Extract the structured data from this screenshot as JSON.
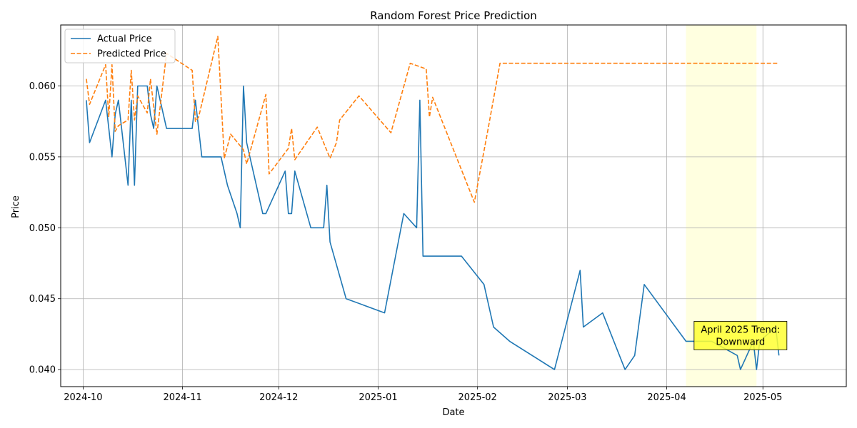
{
  "chart_data": {
    "type": "line",
    "title": "Random Forest Price Prediction",
    "xlabel": "Date",
    "ylabel": "Price",
    "x_ticks": [
      "2024-10-01",
      "2024-11-01",
      "2024-12-01",
      "2025-01-01",
      "2025-02-01",
      "2025-03-01",
      "2025-04-01",
      "2025-05-01"
    ],
    "y_ticks": [
      0.04,
      0.045,
      0.05,
      0.055,
      0.06
    ],
    "y_tick_labels": [
      "0.040",
      "0.045",
      "0.050",
      "0.055",
      "0.060"
    ],
    "xlim": [
      "2024-09-24",
      "2025-05-27"
    ],
    "ylim": [
      0.0388,
      0.0643
    ],
    "grid": true,
    "legend_position": "top-left",
    "highlight_range": [
      "2025-04-07",
      "2025-04-29"
    ],
    "highlight_color": "#ffffe0",
    "annotation": {
      "lines": [
        "April 2025 Trend:",
        "Downward"
      ],
      "anchor_date": "2025-04-24",
      "anchor_value": 0.0424,
      "background": "#ffff33"
    },
    "series": [
      {
        "name": "Actual Price",
        "color": "#1f77b4",
        "style": "solid",
        "x": [
          "2024-10-02",
          "2024-10-03",
          "2024-10-08",
          "2024-10-10",
          "2024-10-11",
          "2024-10-12",
          "2024-10-15",
          "2024-10-16",
          "2024-10-17",
          "2024-10-18",
          "2024-10-21",
          "2024-10-22",
          "2024-10-23",
          "2024-10-24",
          "2024-10-27",
          "2024-11-04",
          "2024-11-05",
          "2024-11-07",
          "2024-11-13",
          "2024-11-15",
          "2024-11-18",
          "2024-11-19",
          "2024-11-20",
          "2024-11-21",
          "2024-11-26",
          "2024-11-27",
          "2024-12-03",
          "2024-12-04",
          "2024-12-05",
          "2024-12-06",
          "2024-12-11",
          "2024-12-15",
          "2024-12-16",
          "2024-12-17",
          "2024-12-22",
          "2025-01-03",
          "2025-01-09",
          "2025-01-13",
          "2025-01-14",
          "2025-01-15",
          "2025-01-27",
          "2025-02-03",
          "2025-02-06",
          "2025-02-11",
          "2025-02-25",
          "2025-03-05",
          "2025-03-06",
          "2025-03-12",
          "2025-03-19",
          "2025-03-22",
          "2025-03-25",
          "2025-04-07",
          "2025-04-15",
          "2025-04-23",
          "2025-04-24",
          "2025-04-28",
          "2025-04-29",
          "2025-04-30",
          "2025-05-05",
          "2025-05-06"
        ],
        "y": [
          0.059,
          0.056,
          0.059,
          0.055,
          0.058,
          0.059,
          0.053,
          0.059,
          0.053,
          0.06,
          0.06,
          0.058,
          0.057,
          0.06,
          0.057,
          0.057,
          0.059,
          0.055,
          0.055,
          0.053,
          0.051,
          0.05,
          0.06,
          0.056,
          0.051,
          0.051,
          0.054,
          0.051,
          0.051,
          0.054,
          0.05,
          0.05,
          0.053,
          0.049,
          0.045,
          0.044,
          0.051,
          0.05,
          0.059,
          0.048,
          0.048,
          0.046,
          0.043,
          0.042,
          0.04,
          0.047,
          0.043,
          0.044,
          0.04,
          0.041,
          0.046,
          0.042,
          0.042,
          0.041,
          0.04,
          0.042,
          0.04,
          0.042,
          0.043,
          0.041
        ]
      },
      {
        "name": "Predicted Price",
        "color": "#ff7f0e",
        "style": "dashed",
        "x": [
          "2024-10-02",
          "2024-10-03",
          "2024-10-08",
          "2024-10-09",
          "2024-10-10",
          "2024-10-11",
          "2024-10-12",
          "2024-10-15",
          "2024-10-16",
          "2024-10-17",
          "2024-10-18",
          "2024-10-21",
          "2024-10-22",
          "2024-10-24",
          "2024-10-27",
          "2024-11-04",
          "2024-11-05",
          "2024-11-06",
          "2024-11-12",
          "2024-11-14",
          "2024-11-16",
          "2024-11-20",
          "2024-11-21",
          "2024-11-27",
          "2024-11-28",
          "2024-12-04",
          "2024-12-05",
          "2024-12-06",
          "2024-12-13",
          "2024-12-17",
          "2024-12-19",
          "2024-12-20",
          "2024-12-26",
          "2025-01-05",
          "2025-01-11",
          "2025-01-16",
          "2025-01-17",
          "2025-01-18",
          "2025-01-31",
          "2025-02-04",
          "2025-02-08",
          "2025-05-06"
        ],
        "y": [
          0.0605,
          0.0587,
          0.0615,
          0.0578,
          0.0615,
          0.0568,
          0.0572,
          0.0576,
          0.0611,
          0.0576,
          0.0593,
          0.0581,
          0.0605,
          0.0566,
          0.0623,
          0.0611,
          0.0575,
          0.0578,
          0.0635,
          0.0549,
          0.0566,
          0.0555,
          0.0545,
          0.0594,
          0.0538,
          0.0556,
          0.057,
          0.0548,
          0.0571,
          0.0549,
          0.056,
          0.0576,
          0.0593,
          0.0567,
          0.0616,
          0.0612,
          0.0578,
          0.0592,
          0.0518,
          0.0566,
          0.0616,
          0.0616
        ]
      }
    ]
  }
}
